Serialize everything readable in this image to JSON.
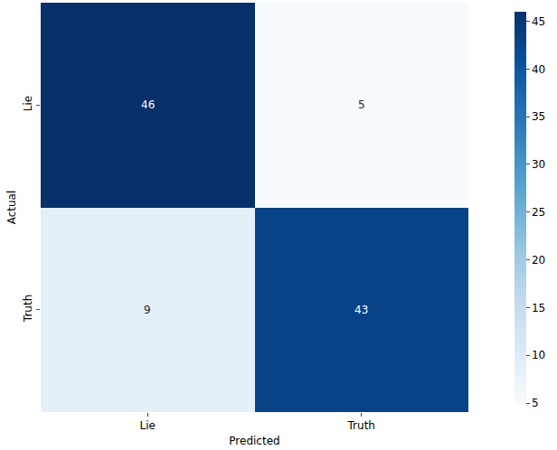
{
  "chart_data": {
    "type": "heatmap",
    "x": [
      "Lie",
      "Truth"
    ],
    "y": [
      "Lie",
      "Truth"
    ],
    "cells": [
      [
        46,
        5
      ],
      [
        9,
        43
      ]
    ],
    "xlabel": "Predicted",
    "ylabel": "Actual",
    "data_labels": true,
    "colorbar_range": [
      5,
      46
    ],
    "colorbar_ticks": [
      5,
      10,
      15,
      20,
      25,
      30,
      35,
      40,
      45
    ]
  }
}
